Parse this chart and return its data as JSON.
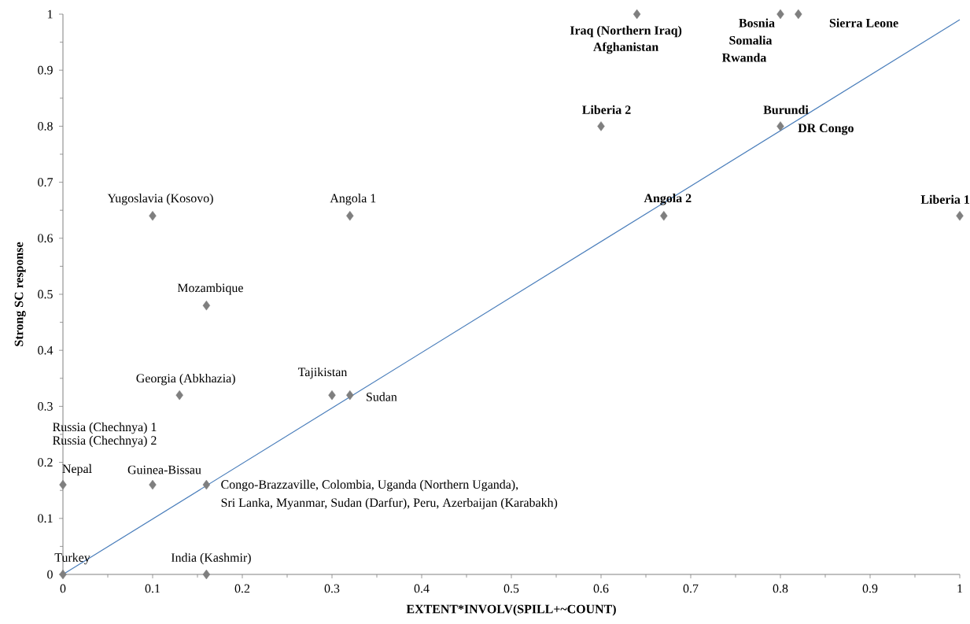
{
  "chart_data": {
    "type": "scatter",
    "xlabel": "EXTENT*INVOLV(SPILL+~COUNT)",
    "ylabel": "Strong SC response",
    "xlim": [
      0,
      1
    ],
    "ylim": [
      0,
      1
    ],
    "xticks": [
      0,
      0.1,
      0.2,
      0.3,
      0.4,
      0.5,
      0.6,
      0.7,
      0.8,
      0.9,
      1
    ],
    "yticks": [
      0,
      0.1,
      0.2,
      0.3,
      0.4,
      0.5,
      0.6,
      0.7,
      0.8,
      0.9,
      1
    ],
    "series": [
      {
        "color": "#7f7f7f",
        "marker": "diamond",
        "x": [
          0,
          0.16,
          0,
          0.1,
          0.16,
          0.13,
          0.3,
          0.32,
          0.16,
          0.1,
          0.32,
          0.67,
          1,
          0.6,
          0.8,
          0.64,
          0.8,
          0.82
        ],
        "values": [
          0,
          0,
          0.16,
          0.16,
          0.16,
          0.32,
          0.32,
          0.32,
          0.48,
          0.64,
          0.64,
          0.64,
          0.64,
          0.8,
          0.8,
          1,
          1,
          1
        ]
      },
      {
        "type": "line",
        "color": "#4a7ebb",
        "marker": "none",
        "x": [
          0,
          1
        ],
        "values": [
          0,
          0.99
        ]
      }
    ],
    "annotations": [
      {
        "text": "Turkey",
        "x": 0,
        "y": 0
      },
      {
        "text": "India (Kashmir)",
        "x": 0.16,
        "y": 0
      },
      {
        "text": "Nepal",
        "x": 0,
        "y": 0.16
      },
      {
        "text": "Russia (Chechnya) 2",
        "x": 0,
        "y": 0.16
      },
      "Russia (Chechnya) 1",
      {
        "text": "Guinea-Bissau",
        "x": 0.1,
        "y": 0.16
      },
      {
        "text": "Congo-Brazzaville, Colombia, Uganda (Northern Uganda),",
        "x": 0.16,
        "y": 0.16
      },
      {
        "text": "Sri Lanka, Myanmar, Sudan (Darfur), Peru, Azerbaijan (Karabakh)",
        "x": 0.16,
        "y": 0.16
      },
      {
        "text": "Georgia (Abkhazia)",
        "x": 0.13,
        "y": 0.32
      },
      {
        "text": "Tajikistan",
        "x": 0.3,
        "y": 0.32
      },
      {
        "text": "Sudan",
        "x": 0.32,
        "y": 0.32
      },
      {
        "text": "Mozambique",
        "x": 0.16,
        "y": 0.48
      },
      {
        "text": "Yugoslavia (Kosovo)",
        "x": 0.1,
        "y": 0.64
      },
      {
        "text": "Angola 1",
        "x": 0.32,
        "y": 0.64
      },
      {
        "text": "Angola 2",
        "x": 0.67,
        "y": 0.64
      },
      {
        "text": "Liberia 1",
        "x": 1,
        "y": 0.64
      },
      {
        "text": "Liberia 2",
        "x": 0.6,
        "y": 0.8
      },
      {
        "text": "Burundi",
        "x": 0.8,
        "y": 0.8
      },
      {
        "text": "DR Congo",
        "x": 0.8,
        "y": 0.8
      },
      {
        "text": "Iraq (Northern Iraq)",
        "x": 0.64,
        "y": 1
      },
      {
        "text": "Afghanistan",
        "x": 0.64,
        "y": 1
      },
      {
        "text": "Bosnia",
        "x": 0.8,
        "y": 1
      },
      {
        "text": "Somalia",
        "x": 0.8,
        "y": 1
      },
      "Rwanda",
      {
        "text": "Sierra Leone",
        "x": 0.82,
        "y": 1
      }
    ]
  }
}
